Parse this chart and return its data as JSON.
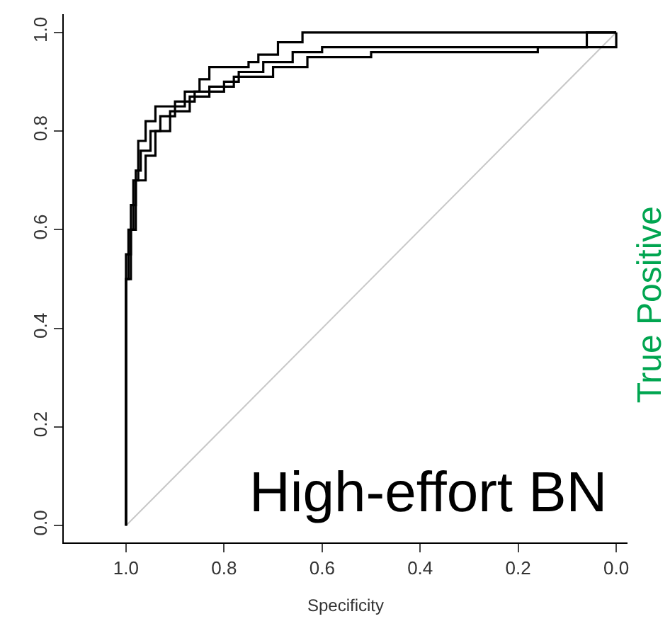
{
  "chart_data": {
    "type": "step",
    "xlabel": "Specificity",
    "xlim": [
      1.127,
      -0.023
    ],
    "xticks": [
      {
        "value": 1.0,
        "label": "1.0"
      },
      0.8,
      0.6,
      0.4,
      0.2,
      {
        "value": 0.0,
        "label": "0.0"
      }
    ],
    "ylim": [
      -0.034,
      1.037
    ],
    "yticks": [
      {
        "value": 0.0,
        "label": "0.0"
      },
      0.2,
      0.4,
      0.6,
      0.8,
      {
        "value": 1.0,
        "label": "1.0"
      }
    ],
    "marker": "none",
    "line_style": "solid",
    "series": [
      {
        "color": "#c8c8c8",
        "type": "line",
        "x": [
          1.0,
          0.0
        ],
        "values": [
          0.0,
          1.0
        ]
      },
      {
        "color": "#000000",
        "x": [
          1.0,
          1.0,
          0.995,
          0.985,
          0.975,
          0.96,
          0.94,
          0.88,
          0.85,
          0.83,
          0.75,
          0.73,
          0.69,
          0.64,
          0.0
        ],
        "values": [
          0.0,
          0.5,
          0.6,
          0.7,
          0.78,
          0.82,
          0.85,
          0.88,
          0.905,
          0.93,
          0.94,
          0.955,
          0.98,
          1.0,
          1.0
        ]
      },
      {
        "color": "#000000",
        "x": [
          1.0,
          1.0,
          0.99,
          0.98,
          0.97,
          0.95,
          0.93,
          0.9,
          0.86,
          0.8,
          0.77,
          0.72,
          0.66,
          0.6,
          0.06,
          0.0
        ],
        "values": [
          0.0,
          0.55,
          0.65,
          0.72,
          0.76,
          0.8,
          0.83,
          0.86,
          0.88,
          0.9,
          0.92,
          0.94,
          0.96,
          0.97,
          1.0,
          1.0
        ]
      },
      {
        "color": "#000000",
        "x": [
          1.0,
          1.0,
          0.99,
          0.98,
          0.96,
          0.94,
          0.91,
          0.87,
          0.83,
          0.78,
          0.7,
          0.63,
          0.5,
          0.16,
          0.0
        ],
        "values": [
          0.0,
          0.5,
          0.6,
          0.7,
          0.75,
          0.8,
          0.84,
          0.87,
          0.89,
          0.91,
          0.93,
          0.95,
          0.96,
          0.97,
          1.0
        ]
      }
    ],
    "annotations": [
      "High-effort BN",
      "True Positive"
    ]
  }
}
